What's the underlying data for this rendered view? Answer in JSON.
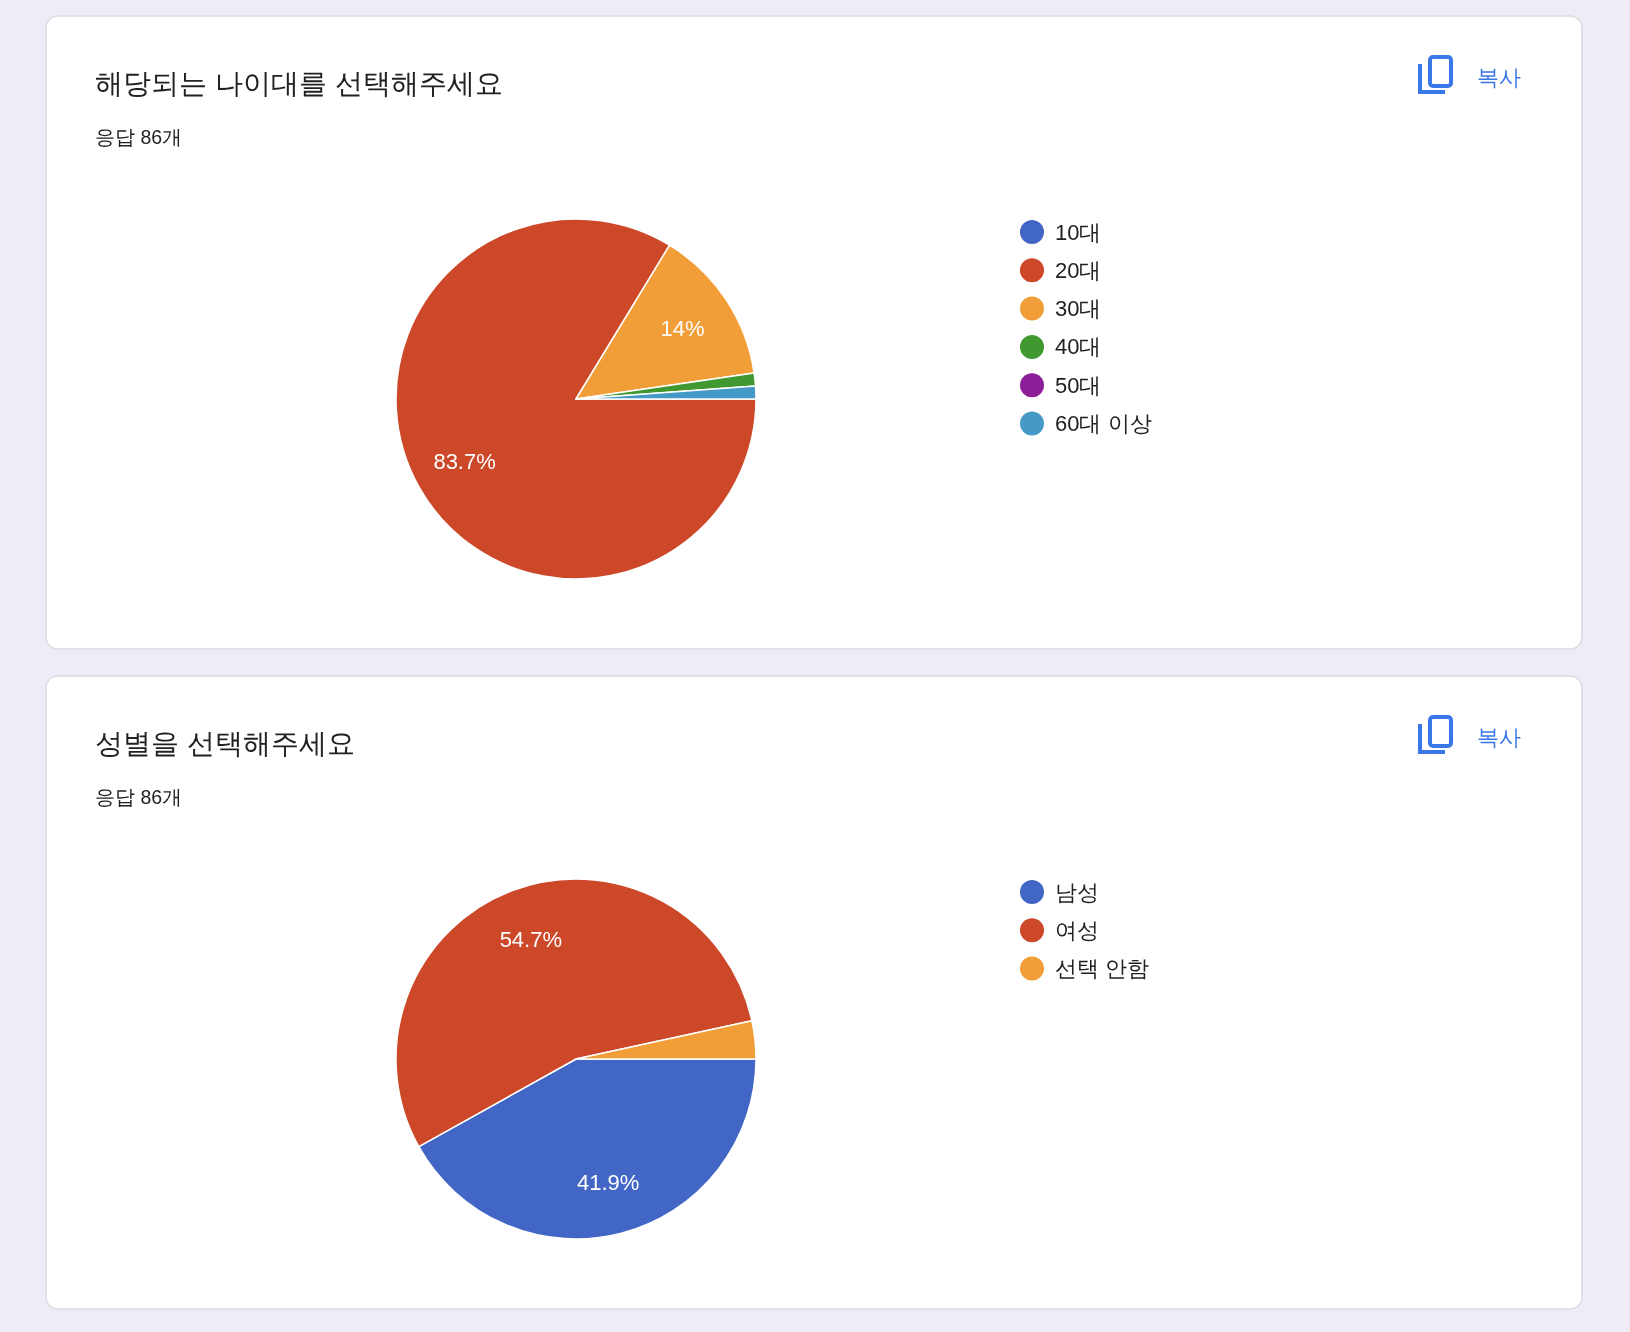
{
  "chart_data": [
    {
      "type": "pie",
      "title": "해당되는 나이대를 선택해주세요",
      "subtitle": "응답 86개",
      "annotations": [
        "복사"
      ],
      "categories": [
        "10대",
        "20대",
        "30대",
        "40대",
        "50대",
        "60대 이상"
      ],
      "values": [
        0,
        83.7,
        14,
        1.15,
        0,
        1.15
      ],
      "colors": [
        "#4266c5",
        "#cc4829",
        "#f19e38",
        "#419830",
        "#8e1e98",
        "#4499c6"
      ],
      "value_labels": [
        null,
        "83.7%",
        "14%",
        null,
        null,
        null
      ],
      "legend": "right"
    },
    {
      "type": "pie",
      "title": "성별을 선택해주세요",
      "subtitle": "응답 86개",
      "annotations": [
        "복사"
      ],
      "categories": [
        "남성",
        "여성",
        "선택 안함"
      ],
      "values": [
        41.9,
        54.7,
        3.4
      ],
      "colors": [
        "#4266c5",
        "#cc4829",
        "#f19e38"
      ],
      "value_labels": [
        "41.9%",
        "54.7%",
        null
      ],
      "legend": "right"
    }
  ]
}
